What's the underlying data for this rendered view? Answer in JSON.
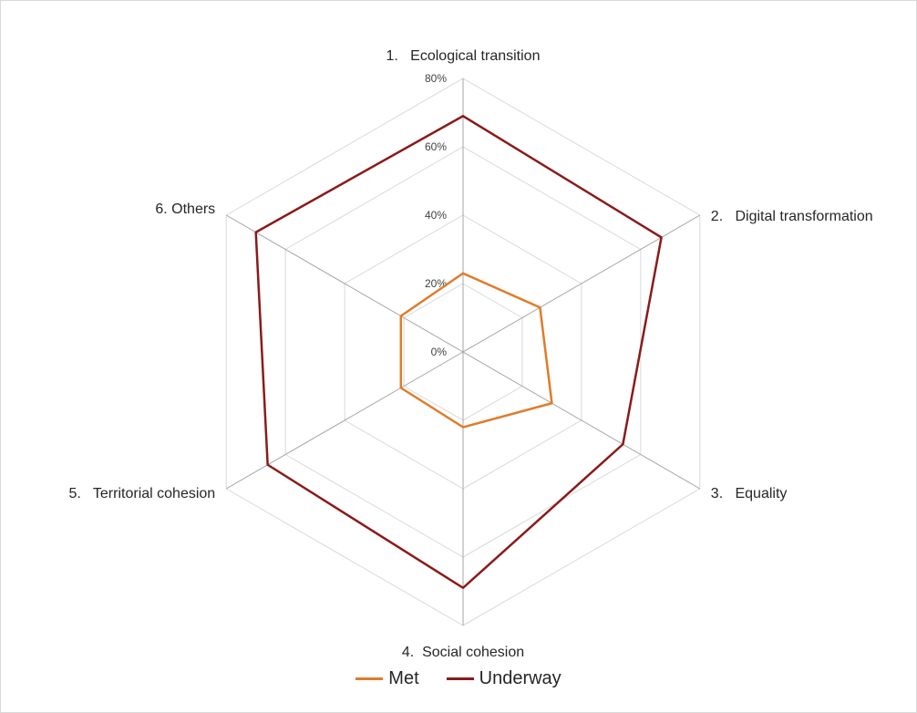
{
  "chart_data": {
    "type": "radar",
    "categories": [
      "1.   Ecological transition",
      "2.   Digital transformation",
      "3.   Equality",
      "4.  Social cohesion",
      "5.   Territorial cohesion",
      "6. Others"
    ],
    "series": [
      {
        "name": "Met",
        "values": [
          0.23,
          0.26,
          0.3,
          0.22,
          0.21,
          0.21
        ],
        "color": "#e07b28"
      },
      {
        "name": "Underway",
        "values": [
          0.69,
          0.67,
          0.54,
          0.69,
          0.66,
          0.7
        ],
        "color": "#8b1a1a"
      }
    ],
    "radial_ticks": [
      "0%",
      "20%",
      "40%",
      "60%",
      "80%"
    ],
    "radial_range": [
      0,
      0.8
    ],
    "grid": true,
    "legend_position": "bottom"
  },
  "legend": {
    "items": [
      {
        "label": "Met",
        "color": "#e07b28"
      },
      {
        "label": "Underway",
        "color": "#8b1a1a"
      }
    ]
  }
}
